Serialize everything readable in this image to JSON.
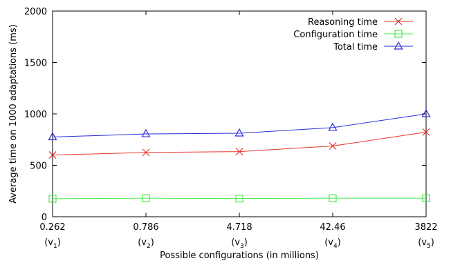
{
  "chart_data": {
    "type": "line",
    "xlabel": "Possible configurations (in millions)",
    "ylabel": "Average time on 1000 adaptations (ms)",
    "categories": [
      "0.262",
      "0.786",
      "4.718",
      "42.46",
      "3822"
    ],
    "category_sublabels": [
      {
        "base": "(v",
        "sub": "1",
        "close": ")"
      },
      {
        "base": "(v",
        "sub": "2",
        "close": ")"
      },
      {
        "base": "(v",
        "sub": "3",
        "close": ")"
      },
      {
        "base": "(v",
        "sub": "4",
        "close": ")"
      },
      {
        "base": "(v",
        "sub": "5",
        "close": ")"
      }
    ],
    "ylim": [
      0,
      2000
    ],
    "yticks": [
      0,
      500,
      1000,
      1500,
      2000
    ],
    "grid": false,
    "legend_position": "top-right",
    "series": [
      {
        "name": "Reasoning time",
        "color": "#e8322a",
        "marker": "x",
        "values": [
          600,
          625,
          633,
          688,
          823
        ]
      },
      {
        "name": "Configuration time",
        "color": "#4be84b",
        "marker": "square",
        "values": [
          175,
          180,
          177,
          180,
          180
        ]
      },
      {
        "name": "Total time",
        "color": "#2a2ad6",
        "marker": "triangle",
        "values": [
          775,
          805,
          812,
          867,
          1000
        ]
      }
    ]
  }
}
